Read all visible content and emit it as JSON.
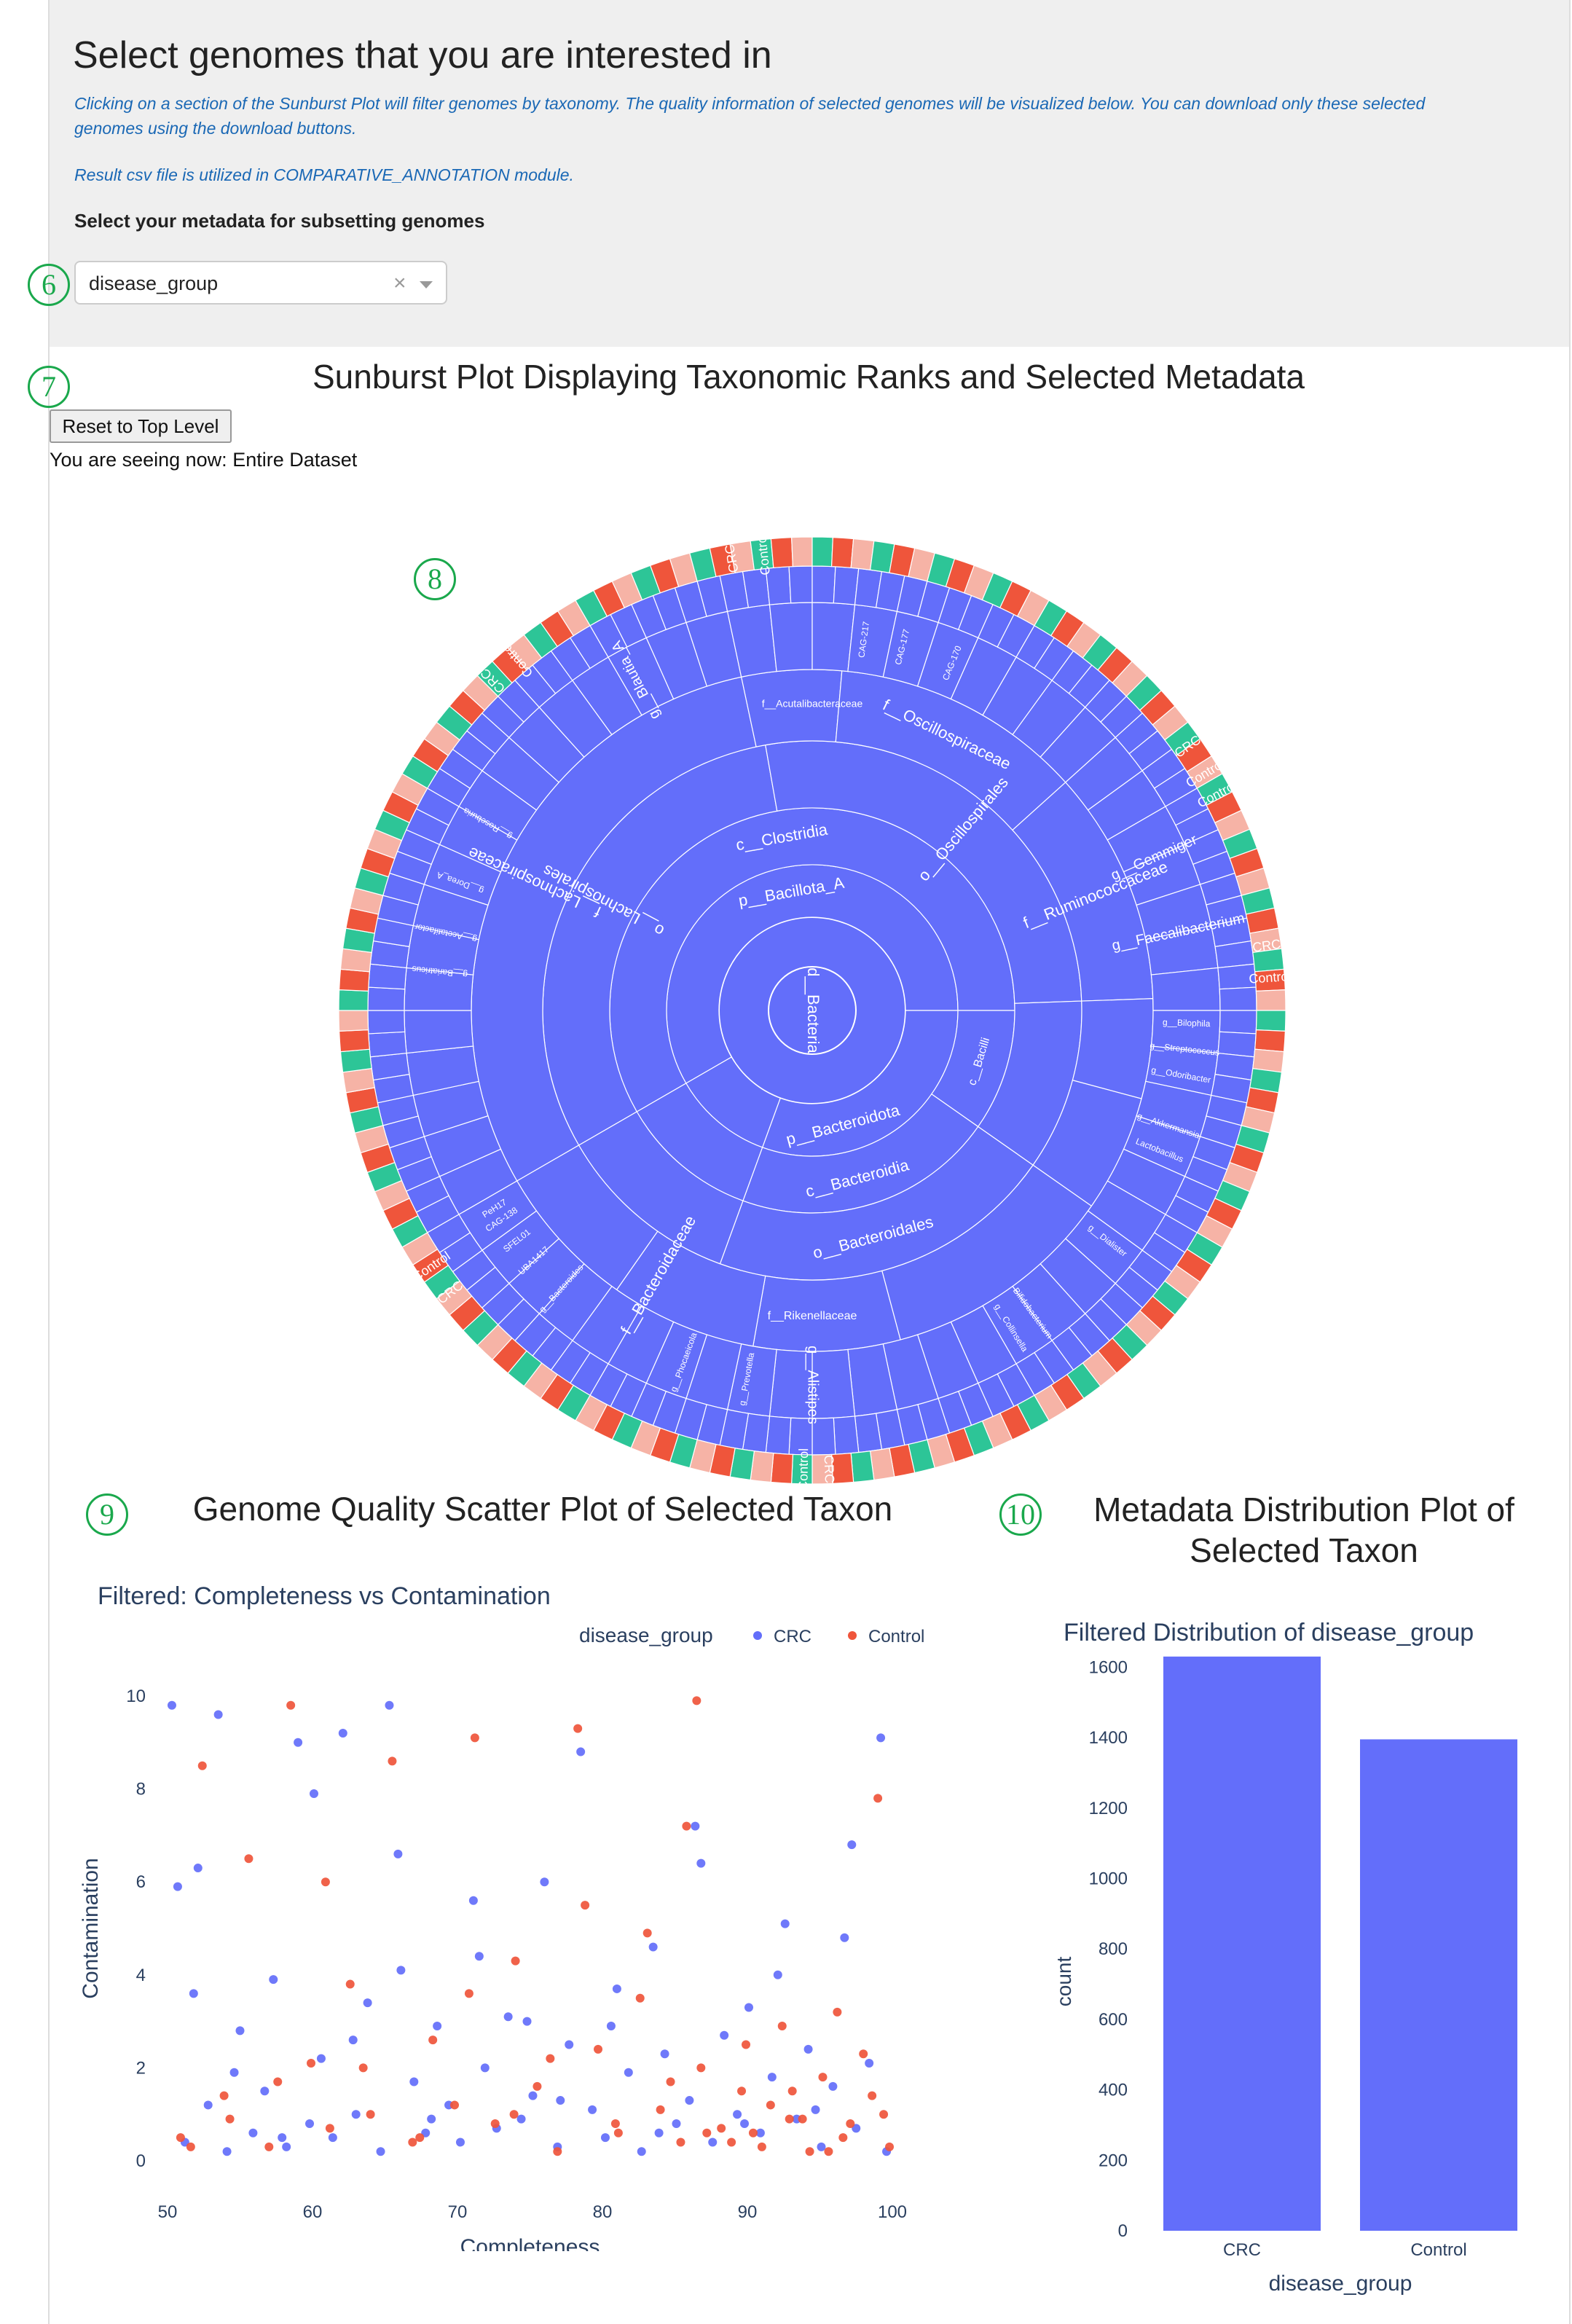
{
  "header": {
    "title": "Select genomes that you are interested in",
    "info_line1": "Clicking on a section of the Sunburst Plot will filter genomes by taxonomy. The quality information of selected genomes will be visualized below. You can download only these selected",
    "info_line2": "genomes using the download buttons.",
    "info_line3": "Result csv file is utilized in COMPARATIVE_ANNOTATION module.",
    "metadata_label": "Select your metadata for subsetting genomes"
  },
  "metadata_select": {
    "value": "disease_group",
    "clear_glyph": "×"
  },
  "markers": [
    "6",
    "7",
    "8",
    "9",
    "10"
  ],
  "sunburst": {
    "title": "Sunburst Plot Displaying Taxonomic Ranks and Selected Metadata",
    "reset_label": "Reset to Top Level",
    "view_label": "You are seeing now:",
    "view_value": "Entire Dataset",
    "ranks": {
      "domain": "d__Bacteria",
      "phyla": [
        "p__Bacillota_A",
        "p__Bacteroidota"
      ],
      "classes": [
        "c__Clostridia",
        "c__Bacteroidia",
        "c__Bacilli"
      ],
      "orders": [
        "o__Lachnospirales",
        "o__Oscillospirales",
        "o__Bacteroidales"
      ],
      "families": [
        "f__Lachnospiraceae",
        "f__Oscillospiraceae",
        "f__Ruminococcaceae",
        "f__Bacteroidaceae",
        "f__Acutalibacteraceae",
        "f__Rikenellaceae"
      ],
      "genera": [
        "g__Blautia_A",
        "g__Faecalibacterium",
        "g__Gemmiger",
        "g__Alistipes",
        "g__Bacteroides",
        "g__Phocaeicola",
        "g__Prevotella",
        "g__Roseburia",
        "g__Dorea_A",
        "g__Bariatricus",
        "g__Acetatifactor",
        "g__Akkermansia",
        "g__Streptococcus",
        "g__Bilophila",
        "g__Odoribacter",
        "g__Dialister",
        "g__Collinsella",
        "CAG-138",
        "CAG-170",
        "CAG-177",
        "CAG-217",
        "PeH17",
        "SFEL01",
        "UBA1417",
        "Bifidobacterium",
        "Lactobacillus"
      ]
    },
    "metadata_labels": [
      "CRC",
      "Control"
    ]
  },
  "scatter": {
    "section_title": "Genome Quality Scatter Plot of Selected Taxon",
    "subtitle": "Filtered: Completeness vs Contamination",
    "legend_title": "disease_group",
    "legend": [
      "CRC",
      "Control"
    ]
  },
  "distribution": {
    "section_title": "Metadata Distribution Plot of Selected Taxon",
    "subtitle": "Filtered Distribution of disease_group"
  },
  "colors": {
    "crc": "#636efa",
    "control": "#ef553b",
    "green_ring": "#2dc597",
    "marker": "#1aa84c",
    "info_text": "#1a68b5"
  },
  "chart_data": [
    {
      "type": "scatter",
      "title": "Filtered: Completeness vs Contamination",
      "xlabel": "Completeness",
      "ylabel": "Contamination",
      "xlim": [
        50,
        100
      ],
      "ylim": [
        0,
        10
      ],
      "xticks": [
        50,
        60,
        70,
        80,
        90,
        100
      ],
      "yticks": [
        0,
        2,
        4,
        6,
        8,
        10
      ],
      "legend_title": "disease_group",
      "legend_position": "top-right",
      "series": [
        {
          "name": "CRC",
          "color": "#636efa",
          "x": [
            50.3,
            51.2,
            52.8,
            53.5,
            54.1,
            55.0,
            55.9,
            56.7,
            57.3,
            58.2,
            59.0,
            59.8,
            60.6,
            61.4,
            62.1,
            63.0,
            63.8,
            64.7,
            65.3,
            66.1,
            67.0,
            67.8,
            68.6,
            69.4,
            70.2,
            71.1,
            71.9,
            72.7,
            73.5,
            74.4,
            75.2,
            76.0,
            76.9,
            77.7,
            78.5,
            79.3,
            80.2,
            81.0,
            81.8,
            82.7,
            83.5,
            84.3,
            85.1,
            86.0,
            86.8,
            87.6,
            88.4,
            89.3,
            90.1,
            90.9,
            91.7,
            92.6,
            93.4,
            94.2,
            95.1,
            95.9,
            96.7,
            97.5,
            98.4,
            99.2,
            50.7,
            52.1,
            54.6,
            57.9,
            60.1,
            62.8,
            65.9,
            68.2,
            71.5,
            74.8,
            77.1,
            80.6,
            83.9,
            86.4,
            89.8,
            92.1,
            94.7,
            97.2,
            99.6,
            51.8
          ],
          "y": [
            9.8,
            0.4,
            1.2,
            9.6,
            0.2,
            2.8,
            0.6,
            1.5,
            3.9,
            0.3,
            9.0,
            0.8,
            2.2,
            0.5,
            9.2,
            1.0,
            3.4,
            0.2,
            9.8,
            4.1,
            1.7,
            0.6,
            2.9,
            1.2,
            0.4,
            5.6,
            2.0,
            0.7,
            3.1,
            0.9,
            1.4,
            6.0,
            0.3,
            2.5,
            8.8,
            1.1,
            0.5,
            3.7,
            1.9,
            0.2,
            4.6,
            2.3,
            0.8,
            1.3,
            6.4,
            0.4,
            2.7,
            1.0,
            3.3,
            0.6,
            1.8,
            5.1,
            0.9,
            2.4,
            0.3,
            1.6,
            4.8,
            0.7,
            2.1,
            9.1,
            5.9,
            6.3,
            1.9,
            0.5,
            7.9,
            2.6,
            6.6,
            0.9,
            4.4,
            3.0,
            1.3,
            2.9,
            0.6,
            7.2,
            0.8,
            4.0,
            1.1,
            6.8,
            0.2,
            3.6
          ]
        },
        {
          "name": "Control",
          "color": "#ef553b",
          "x": [
            50.9,
            52.4,
            53.9,
            55.6,
            57.0,
            58.5,
            59.9,
            61.2,
            62.6,
            64.0,
            65.5,
            66.9,
            68.3,
            69.8,
            71.2,
            72.6,
            74.0,
            75.5,
            76.9,
            78.3,
            79.7,
            81.1,
            82.6,
            84.0,
            85.4,
            86.8,
            88.2,
            89.6,
            91.0,
            92.4,
            93.8,
            95.2,
            96.6,
            98.0,
            99.4,
            86.5,
            88.9,
            91.6,
            94.3,
            97.1,
            99.8,
            84.7,
            87.2,
            89.9,
            92.9,
            95.6,
            98.6,
            83.1,
            85.8,
            90.4,
            93.1,
            96.2,
            99.0,
            80.9,
            78.8,
            76.4,
            73.9,
            70.8,
            67.4,
            63.5,
            60.9,
            57.6,
            54.3,
            51.6
          ],
          "y": [
            0.5,
            8.5,
            1.4,
            6.5,
            0.3,
            9.8,
            2.1,
            0.7,
            3.8,
            1.0,
            8.6,
            0.4,
            2.6,
            1.2,
            9.1,
            0.8,
            4.3,
            1.6,
            0.2,
            9.3,
            2.4,
            0.6,
            3.5,
            1.1,
            0.4,
            2.0,
            0.7,
            1.5,
            0.3,
            2.9,
            0.9,
            1.8,
            0.5,
            2.3,
            1.0,
            9.9,
            0.4,
            1.2,
            0.2,
            0.8,
            0.3,
            1.7,
            0.6,
            2.5,
            0.9,
            0.2,
            1.4,
            4.9,
            7.2,
            0.6,
            1.5,
            3.2,
            7.8,
            0.8,
            5.5,
            2.2,
            1.0,
            3.6,
            0.5,
            2.0,
            6.0,
            1.7,
            0.9,
            0.3
          ]
        }
      ]
    },
    {
      "type": "bar",
      "title": "Filtered Distribution of disease_group",
      "xlabel": "disease_group",
      "ylabel": "count",
      "categories": [
        "CRC",
        "Control"
      ],
      "values": [
        1630,
        1395
      ],
      "ylim": [
        0,
        1700
      ],
      "yticks": [
        0,
        200,
        400,
        600,
        800,
        1000,
        1200,
        1400,
        1600
      ],
      "color": "#636efa"
    }
  ]
}
